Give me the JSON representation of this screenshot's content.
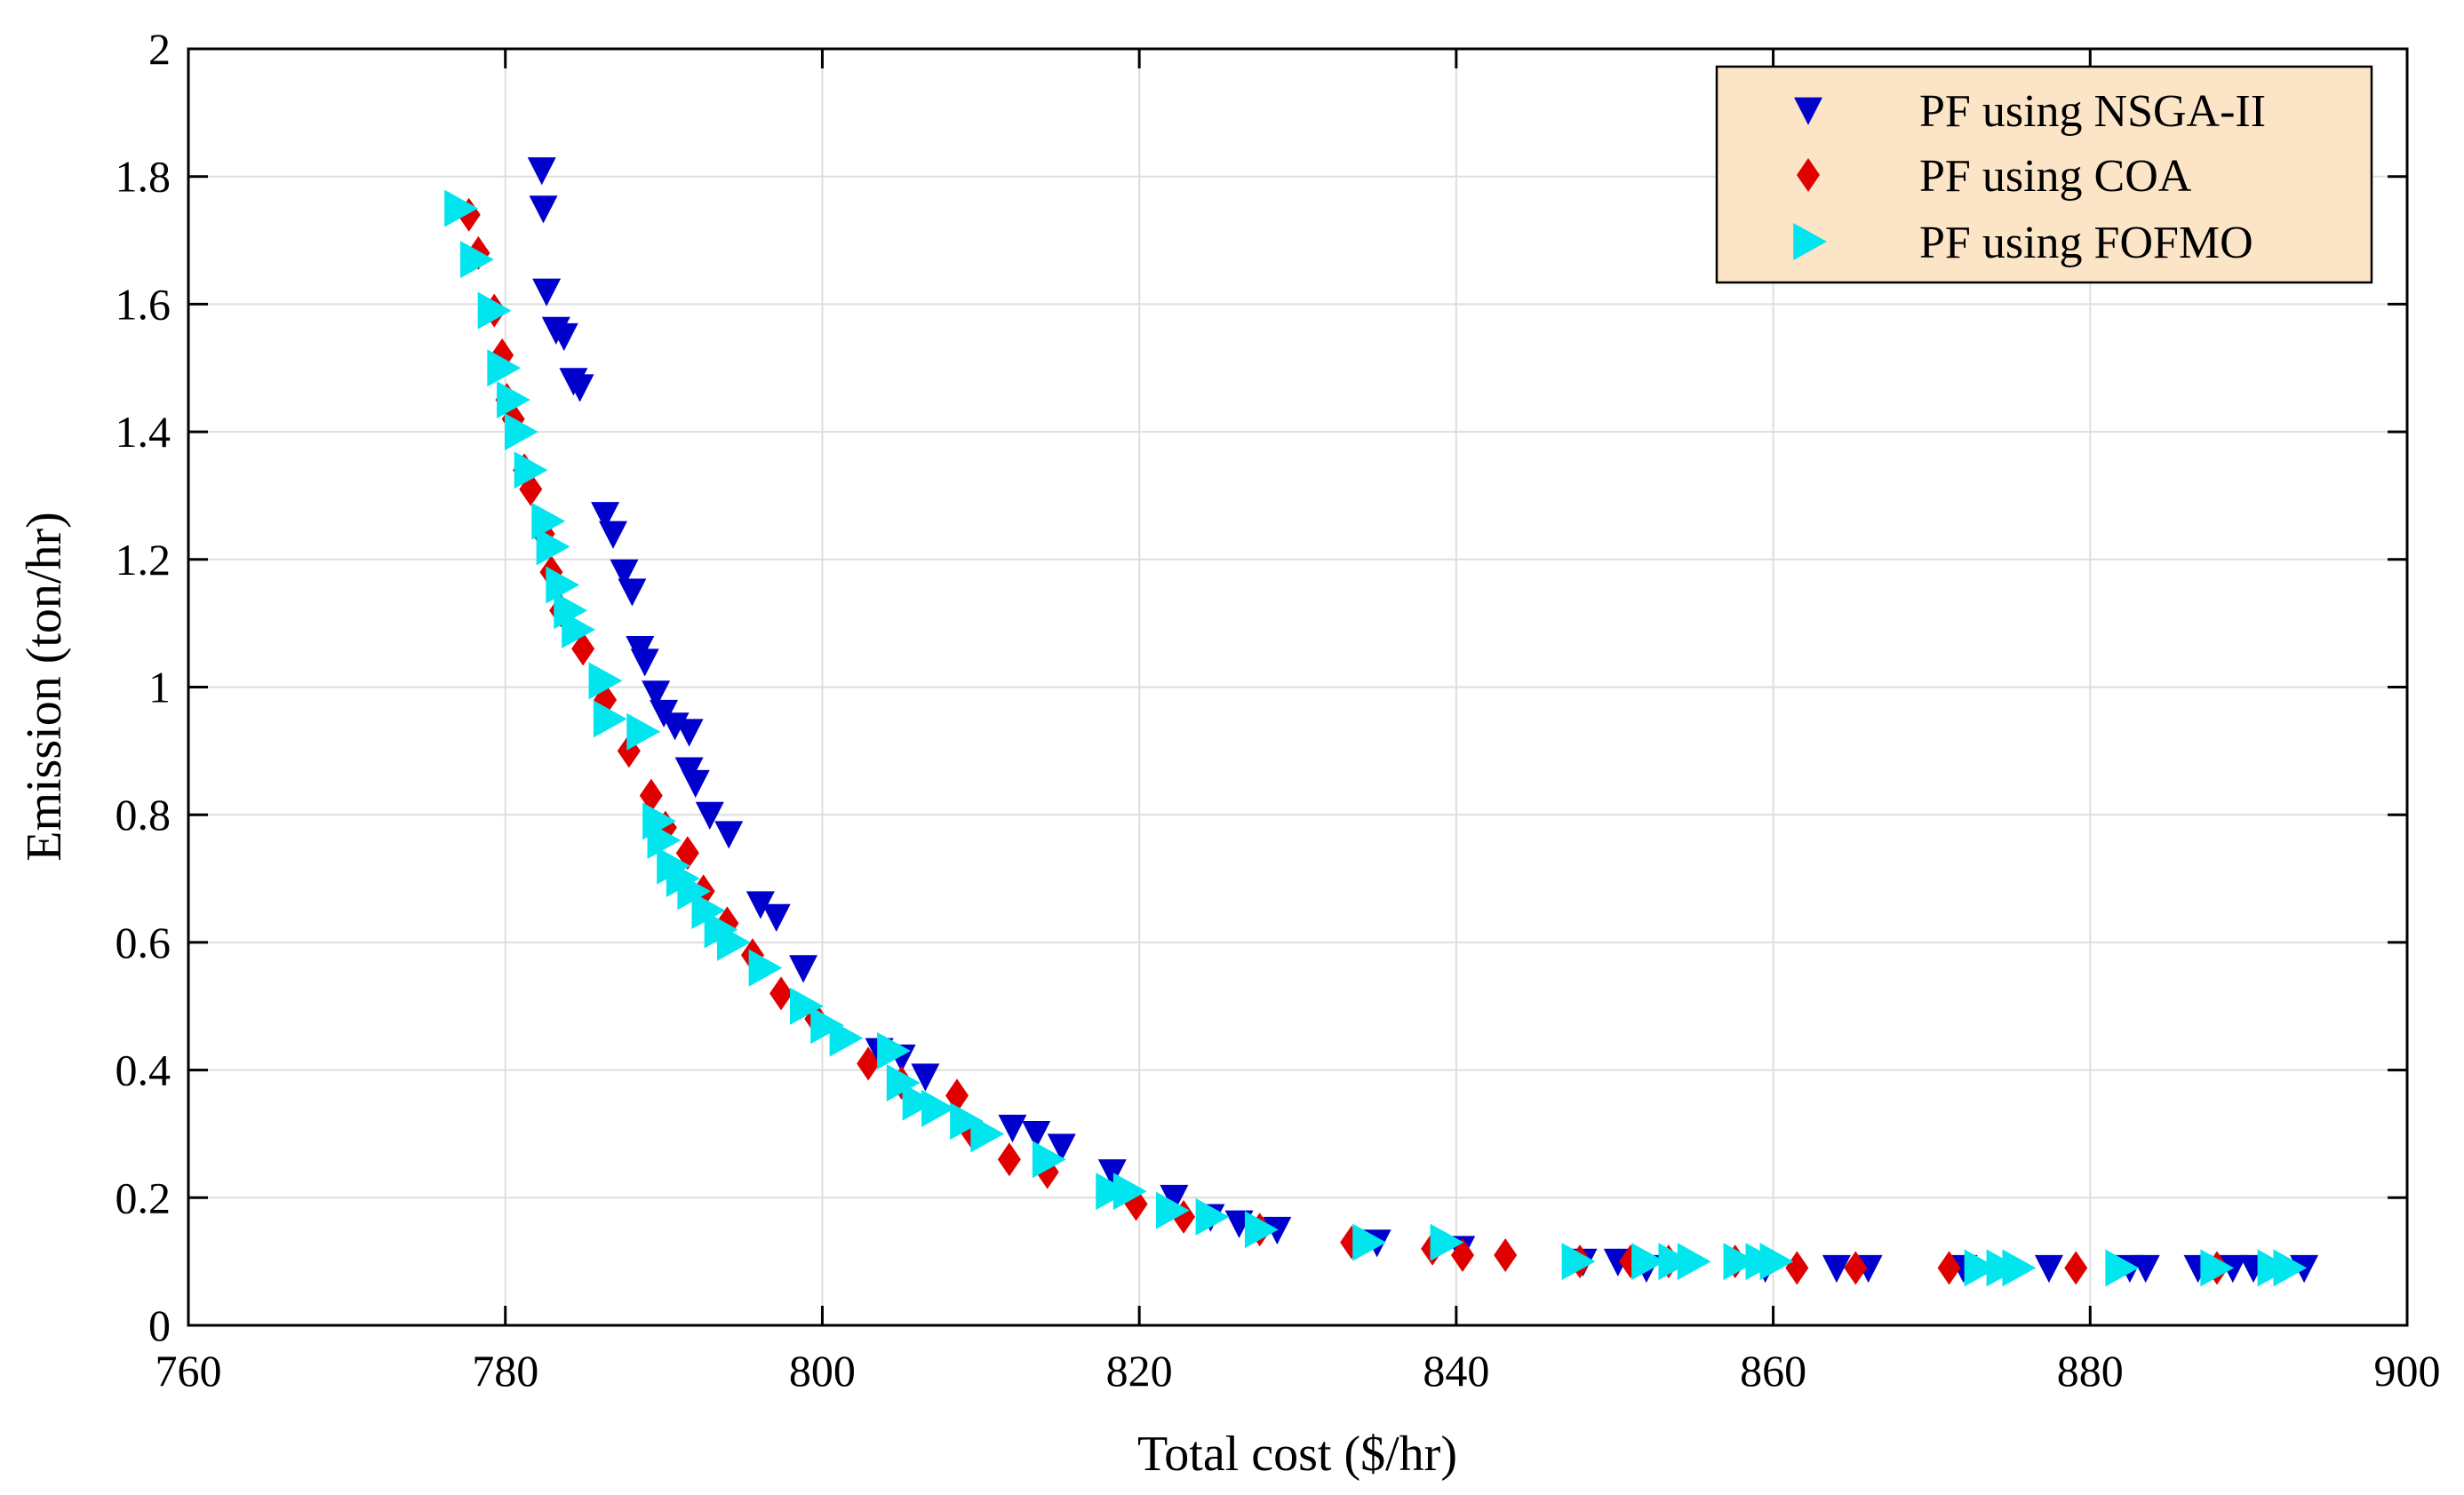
{
  "chart_data": {
    "type": "scatter",
    "title": "",
    "xlabel": "Total cost ($/hr)",
    "ylabel": "Emission (ton/hr)",
    "xlim": [
      760,
      900
    ],
    "ylim": [
      0,
      2
    ],
    "xticks": [
      760,
      780,
      800,
      820,
      840,
      860,
      880,
      900
    ],
    "yticks": [
      0,
      0.2,
      0.4,
      0.6,
      0.8,
      1,
      1.2,
      1.4,
      1.6,
      1.8,
      2
    ],
    "xtick_labels": [
      "760",
      "780",
      "800",
      "820",
      "840",
      "860",
      "880",
      "900"
    ],
    "ytick_labels": [
      "0",
      "0.2",
      "0.4",
      "0.6",
      "0.8",
      "1",
      "1.2",
      "1.4",
      "1.6",
      "1.8",
      "2"
    ],
    "grid": true,
    "legend_position": "top-right",
    "series": [
      {
        "name": "PF using NSGA-II",
        "marker": "triangle-down",
        "color": "#0000CD",
        "points": [
          [
            782.3,
            1.81
          ],
          [
            782.4,
            1.75
          ],
          [
            782.6,
            1.62
          ],
          [
            783.2,
            1.56
          ],
          [
            783.7,
            1.55
          ],
          [
            784.3,
            1.48
          ],
          [
            784.7,
            1.47
          ],
          [
            786.3,
            1.27
          ],
          [
            786.8,
            1.24
          ],
          [
            787.5,
            1.18
          ],
          [
            788.0,
            1.15
          ],
          [
            788.5,
            1.06
          ],
          [
            788.8,
            1.04
          ],
          [
            789.5,
            0.99
          ],
          [
            790.0,
            0.96
          ],
          [
            790.7,
            0.94
          ],
          [
            791.6,
            0.93
          ],
          [
            791.6,
            0.87
          ],
          [
            792.0,
            0.85
          ],
          [
            792.9,
            0.8
          ],
          [
            794.1,
            0.77
          ],
          [
            796.1,
            0.66
          ],
          [
            797.1,
            0.64
          ],
          [
            798.8,
            0.56
          ],
          [
            803.6,
            0.43
          ],
          [
            805.0,
            0.42
          ],
          [
            806.5,
            0.39
          ],
          [
            812.0,
            0.31
          ],
          [
            813.5,
            0.3
          ],
          [
            815.1,
            0.28
          ],
          [
            818.3,
            0.24
          ],
          [
            822.2,
            0.2
          ],
          [
            824.5,
            0.17
          ],
          [
            826.3,
            0.16
          ],
          [
            828.7,
            0.15
          ],
          [
            835.0,
            0.13
          ],
          [
            840.3,
            0.12
          ],
          [
            848.0,
            0.1
          ],
          [
            850.2,
            0.1
          ],
          [
            852.0,
            0.09
          ],
          [
            859.5,
            0.09
          ],
          [
            864.0,
            0.09
          ],
          [
            866.0,
            0.09
          ],
          [
            872.0,
            0.09
          ],
          [
            877.4,
            0.09
          ],
          [
            882.5,
            0.09
          ],
          [
            883.5,
            0.09
          ],
          [
            886.8,
            0.09
          ],
          [
            889.0,
            0.09
          ],
          [
            890.3,
            0.09
          ],
          [
            893.5,
            0.09
          ]
        ]
      },
      {
        "name": "PF using COA",
        "marker": "diamond",
        "color": "#E00000",
        "points": [
          [
            777.7,
            1.74
          ],
          [
            778.3,
            1.68
          ],
          [
            779.3,
            1.59
          ],
          [
            779.8,
            1.52
          ],
          [
            780.1,
            1.45
          ],
          [
            780.5,
            1.42
          ],
          [
            781.2,
            1.34
          ],
          [
            781.6,
            1.31
          ],
          [
            782.4,
            1.24
          ],
          [
            782.9,
            1.18
          ],
          [
            783.5,
            1.12
          ],
          [
            784.9,
            1.06
          ],
          [
            786.3,
            0.98
          ],
          [
            787.8,
            0.9
          ],
          [
            789.2,
            0.83
          ],
          [
            790.1,
            0.78
          ],
          [
            791.5,
            0.74
          ],
          [
            792.5,
            0.68
          ],
          [
            794.0,
            0.63
          ],
          [
            795.6,
            0.58
          ],
          [
            797.4,
            0.52
          ],
          [
            799.6,
            0.48
          ],
          [
            802.9,
            0.41
          ],
          [
            805.0,
            0.38
          ],
          [
            808.5,
            0.36
          ],
          [
            809.5,
            0.3
          ],
          [
            811.8,
            0.26
          ],
          [
            814.2,
            0.24
          ],
          [
            819.8,
            0.19
          ],
          [
            822.8,
            0.17
          ],
          [
            827.6,
            0.15
          ],
          [
            833.4,
            0.13
          ],
          [
            838.5,
            0.12
          ],
          [
            840.4,
            0.11
          ],
          [
            843.1,
            0.11
          ],
          [
            847.8,
            0.1
          ],
          [
            851.0,
            0.1
          ],
          [
            853.4,
            0.1
          ],
          [
            857.6,
            0.1
          ],
          [
            861.5,
            0.09
          ],
          [
            865.2,
            0.09
          ],
          [
            871.1,
            0.09
          ],
          [
            879.1,
            0.09
          ],
          [
            888.0,
            0.09
          ]
        ]
      },
      {
        "name": "PF using FOFMO",
        "marker": "triangle-right",
        "color": "#00E5EE",
        "points": [
          [
            777.1,
            1.75
          ],
          [
            778.1,
            1.67
          ],
          [
            779.2,
            1.59
          ],
          [
            779.8,
            1.5
          ],
          [
            780.4,
            1.45
          ],
          [
            780.9,
            1.4
          ],
          [
            781.5,
            1.34
          ],
          [
            782.6,
            1.26
          ],
          [
            782.9,
            1.22
          ],
          [
            783.5,
            1.16
          ],
          [
            784.0,
            1.12
          ],
          [
            784.5,
            1.09
          ],
          [
            786.2,
            1.01
          ],
          [
            786.5,
            0.95
          ],
          [
            788.6,
            0.93
          ],
          [
            789.6,
            0.79
          ],
          [
            789.9,
            0.76
          ],
          [
            790.5,
            0.72
          ],
          [
            791.1,
            0.7
          ],
          [
            791.8,
            0.68
          ],
          [
            792.7,
            0.65
          ],
          [
            793.5,
            0.62
          ],
          [
            794.3,
            0.6
          ],
          [
            796.3,
            0.56
          ],
          [
            798.9,
            0.5
          ],
          [
            800.2,
            0.47
          ],
          [
            801.4,
            0.45
          ],
          [
            804.4,
            0.43
          ],
          [
            805.0,
            0.38
          ],
          [
            806.0,
            0.35
          ],
          [
            807.2,
            0.34
          ],
          [
            809.0,
            0.32
          ],
          [
            810.3,
            0.3
          ],
          [
            814.2,
            0.26
          ],
          [
            818.2,
            0.21
          ],
          [
            819.3,
            0.21
          ],
          [
            822.0,
            0.18
          ],
          [
            824.5,
            0.17
          ],
          [
            827.6,
            0.15
          ],
          [
            834.4,
            0.13
          ],
          [
            839.3,
            0.13
          ],
          [
            847.6,
            0.1
          ],
          [
            852.0,
            0.1
          ],
          [
            853.7,
            0.1
          ],
          [
            854.9,
            0.1
          ],
          [
            857.8,
            0.1
          ],
          [
            859.2,
            0.1
          ],
          [
            860.1,
            0.1
          ],
          [
            873.0,
            0.09
          ],
          [
            874.4,
            0.09
          ],
          [
            875.4,
            0.09
          ],
          [
            881.9,
            0.09
          ],
          [
            887.9,
            0.09
          ],
          [
            891.5,
            0.09
          ],
          [
            892.5,
            0.09
          ]
        ]
      }
    ]
  }
}
